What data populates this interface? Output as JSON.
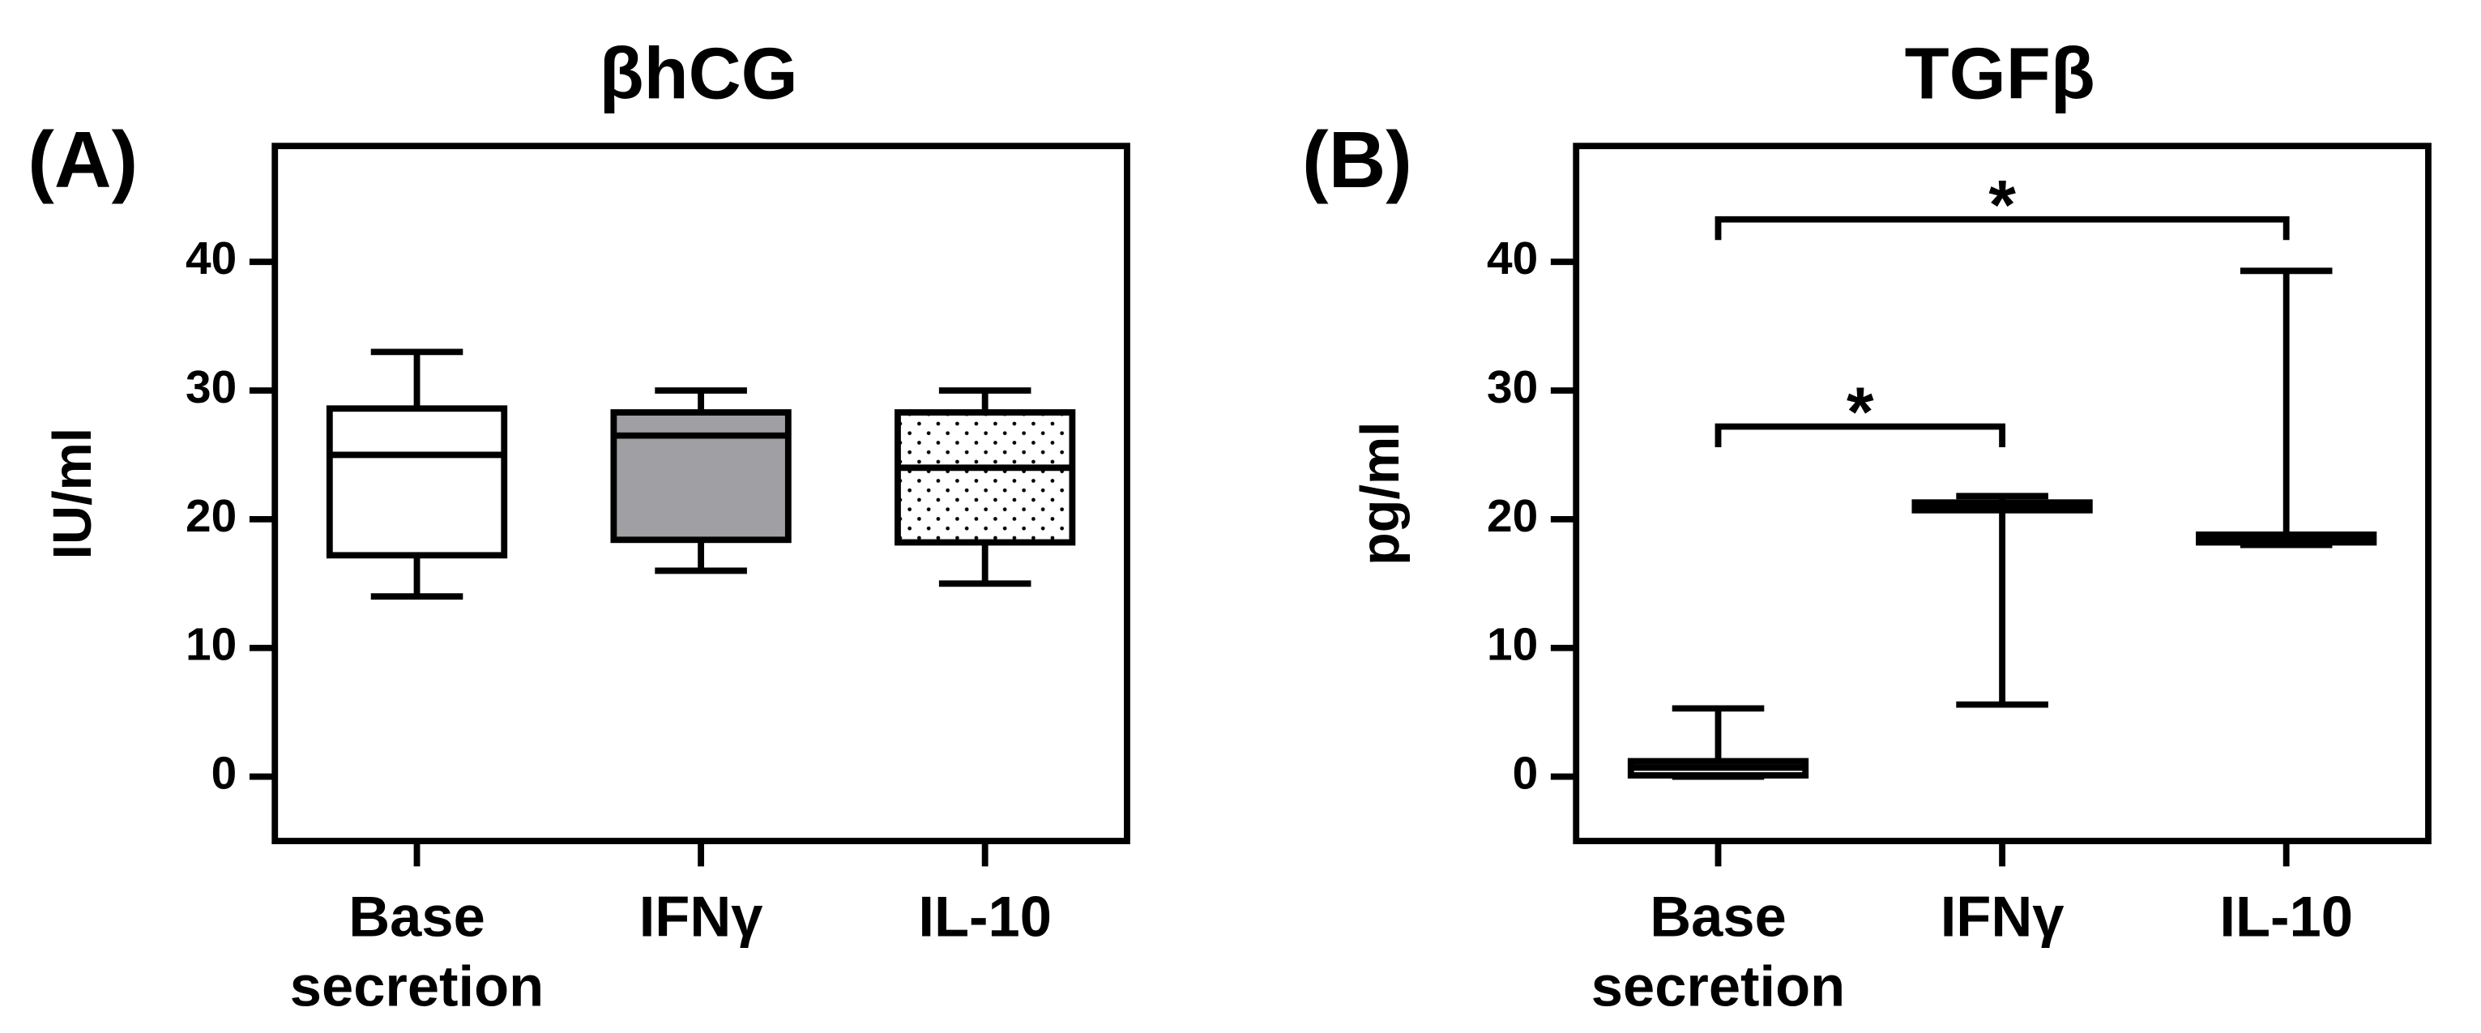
{
  "chart_data": [
    {
      "type": "box",
      "panel_label": "(A)",
      "title": "βhCG",
      "ylabel": "IU/ml",
      "categories": [
        "Base secretion",
        "IFNγ",
        "IL-10"
      ],
      "boxes": [
        {
          "min": 14,
          "q1": 17.2,
          "median": 25,
          "q3": 28.6,
          "max": 33,
          "fill": "#ffffff"
        },
        {
          "min": 16,
          "q1": 18.4,
          "median": 26.5,
          "q3": 28.3,
          "max": 30,
          "fill": "#a0a0a4"
        },
        {
          "min": 15,
          "q1": 18.2,
          "median": 24,
          "q3": 28.3,
          "max": 30,
          "fill": "dots"
        }
      ],
      "ylim": [
        -5,
        49
      ],
      "yticks": [
        0,
        10,
        20,
        30,
        40
      ]
    },
    {
      "type": "box",
      "panel_label": "(B)",
      "title": "TGFβ",
      "ylabel": "pg/ml",
      "categories": [
        "Base secretion",
        "IFNγ",
        "IL-10"
      ],
      "boxes": [
        {
          "min": 0,
          "q1": 0.1,
          "median": 0.7,
          "q3": 1.2,
          "max": 5.3,
          "fill": "#ffffff"
        },
        {
          "min": 5.6,
          "q1": 20.7,
          "median": 21,
          "q3": 21.3,
          "max": 21.8,
          "fill": "#ffffff"
        },
        {
          "min": 18,
          "q1": 18.2,
          "median": 18.5,
          "q3": 18.8,
          "max": 39.3,
          "fill": "#ffffff"
        }
      ],
      "ylim": [
        -5,
        49
      ],
      "yticks": [
        0,
        10,
        20,
        30,
        40
      ],
      "significance": [
        {
          "from": 0,
          "to": 2,
          "y": 43.3,
          "label": "*"
        },
        {
          "from": 0,
          "to": 1,
          "y": 27.2,
          "label": "*"
        }
      ]
    }
  ]
}
